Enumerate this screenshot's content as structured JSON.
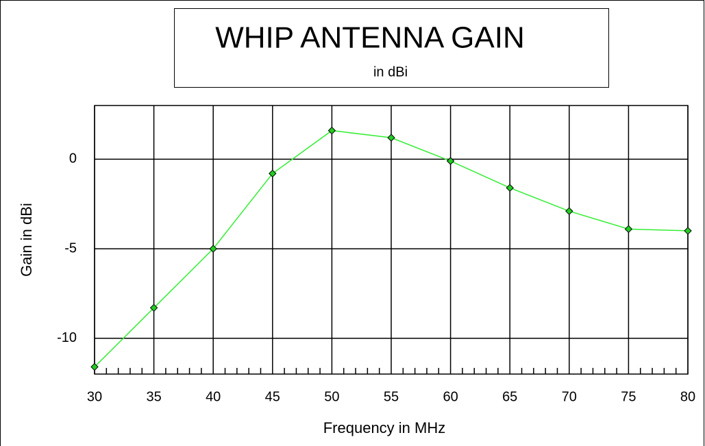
{
  "chart_data": {
    "type": "line",
    "title": "WHIP ANTENNA GAIN",
    "subtitle": "in dBi",
    "x_label": "Frequency in MHz",
    "y_label": "Gain in dBi",
    "x": [
      30,
      35,
      40,
      45,
      50,
      55,
      60,
      65,
      70,
      75,
      80
    ],
    "series": [
      {
        "name": "Gain",
        "color": "#33ee33",
        "marker_color": "#22cc22",
        "values": [
          -11.6,
          -8.3,
          -5.0,
          -0.8,
          1.6,
          1.2,
          -0.1,
          -1.6,
          -2.9,
          -3.9,
          -4.0
        ]
      }
    ],
    "xlim": [
      30,
      80
    ],
    "xticks": [
      30,
      35,
      40,
      45,
      50,
      55,
      60,
      65,
      70,
      75,
      80
    ],
    "xminorticks": [
      31,
      32,
      33,
      34,
      36,
      37,
      38,
      39,
      41,
      42,
      43,
      44,
      46,
      47,
      48,
      49,
      51,
      52,
      53,
      54,
      56,
      57,
      58,
      59,
      61,
      62,
      63,
      64,
      66,
      67,
      68,
      69,
      71,
      72,
      73,
      74,
      76,
      77,
      78,
      79
    ],
    "ylim": [
      -12,
      3
    ],
    "yticks": [
      -10,
      -5,
      0
    ],
    "grid": true
  }
}
